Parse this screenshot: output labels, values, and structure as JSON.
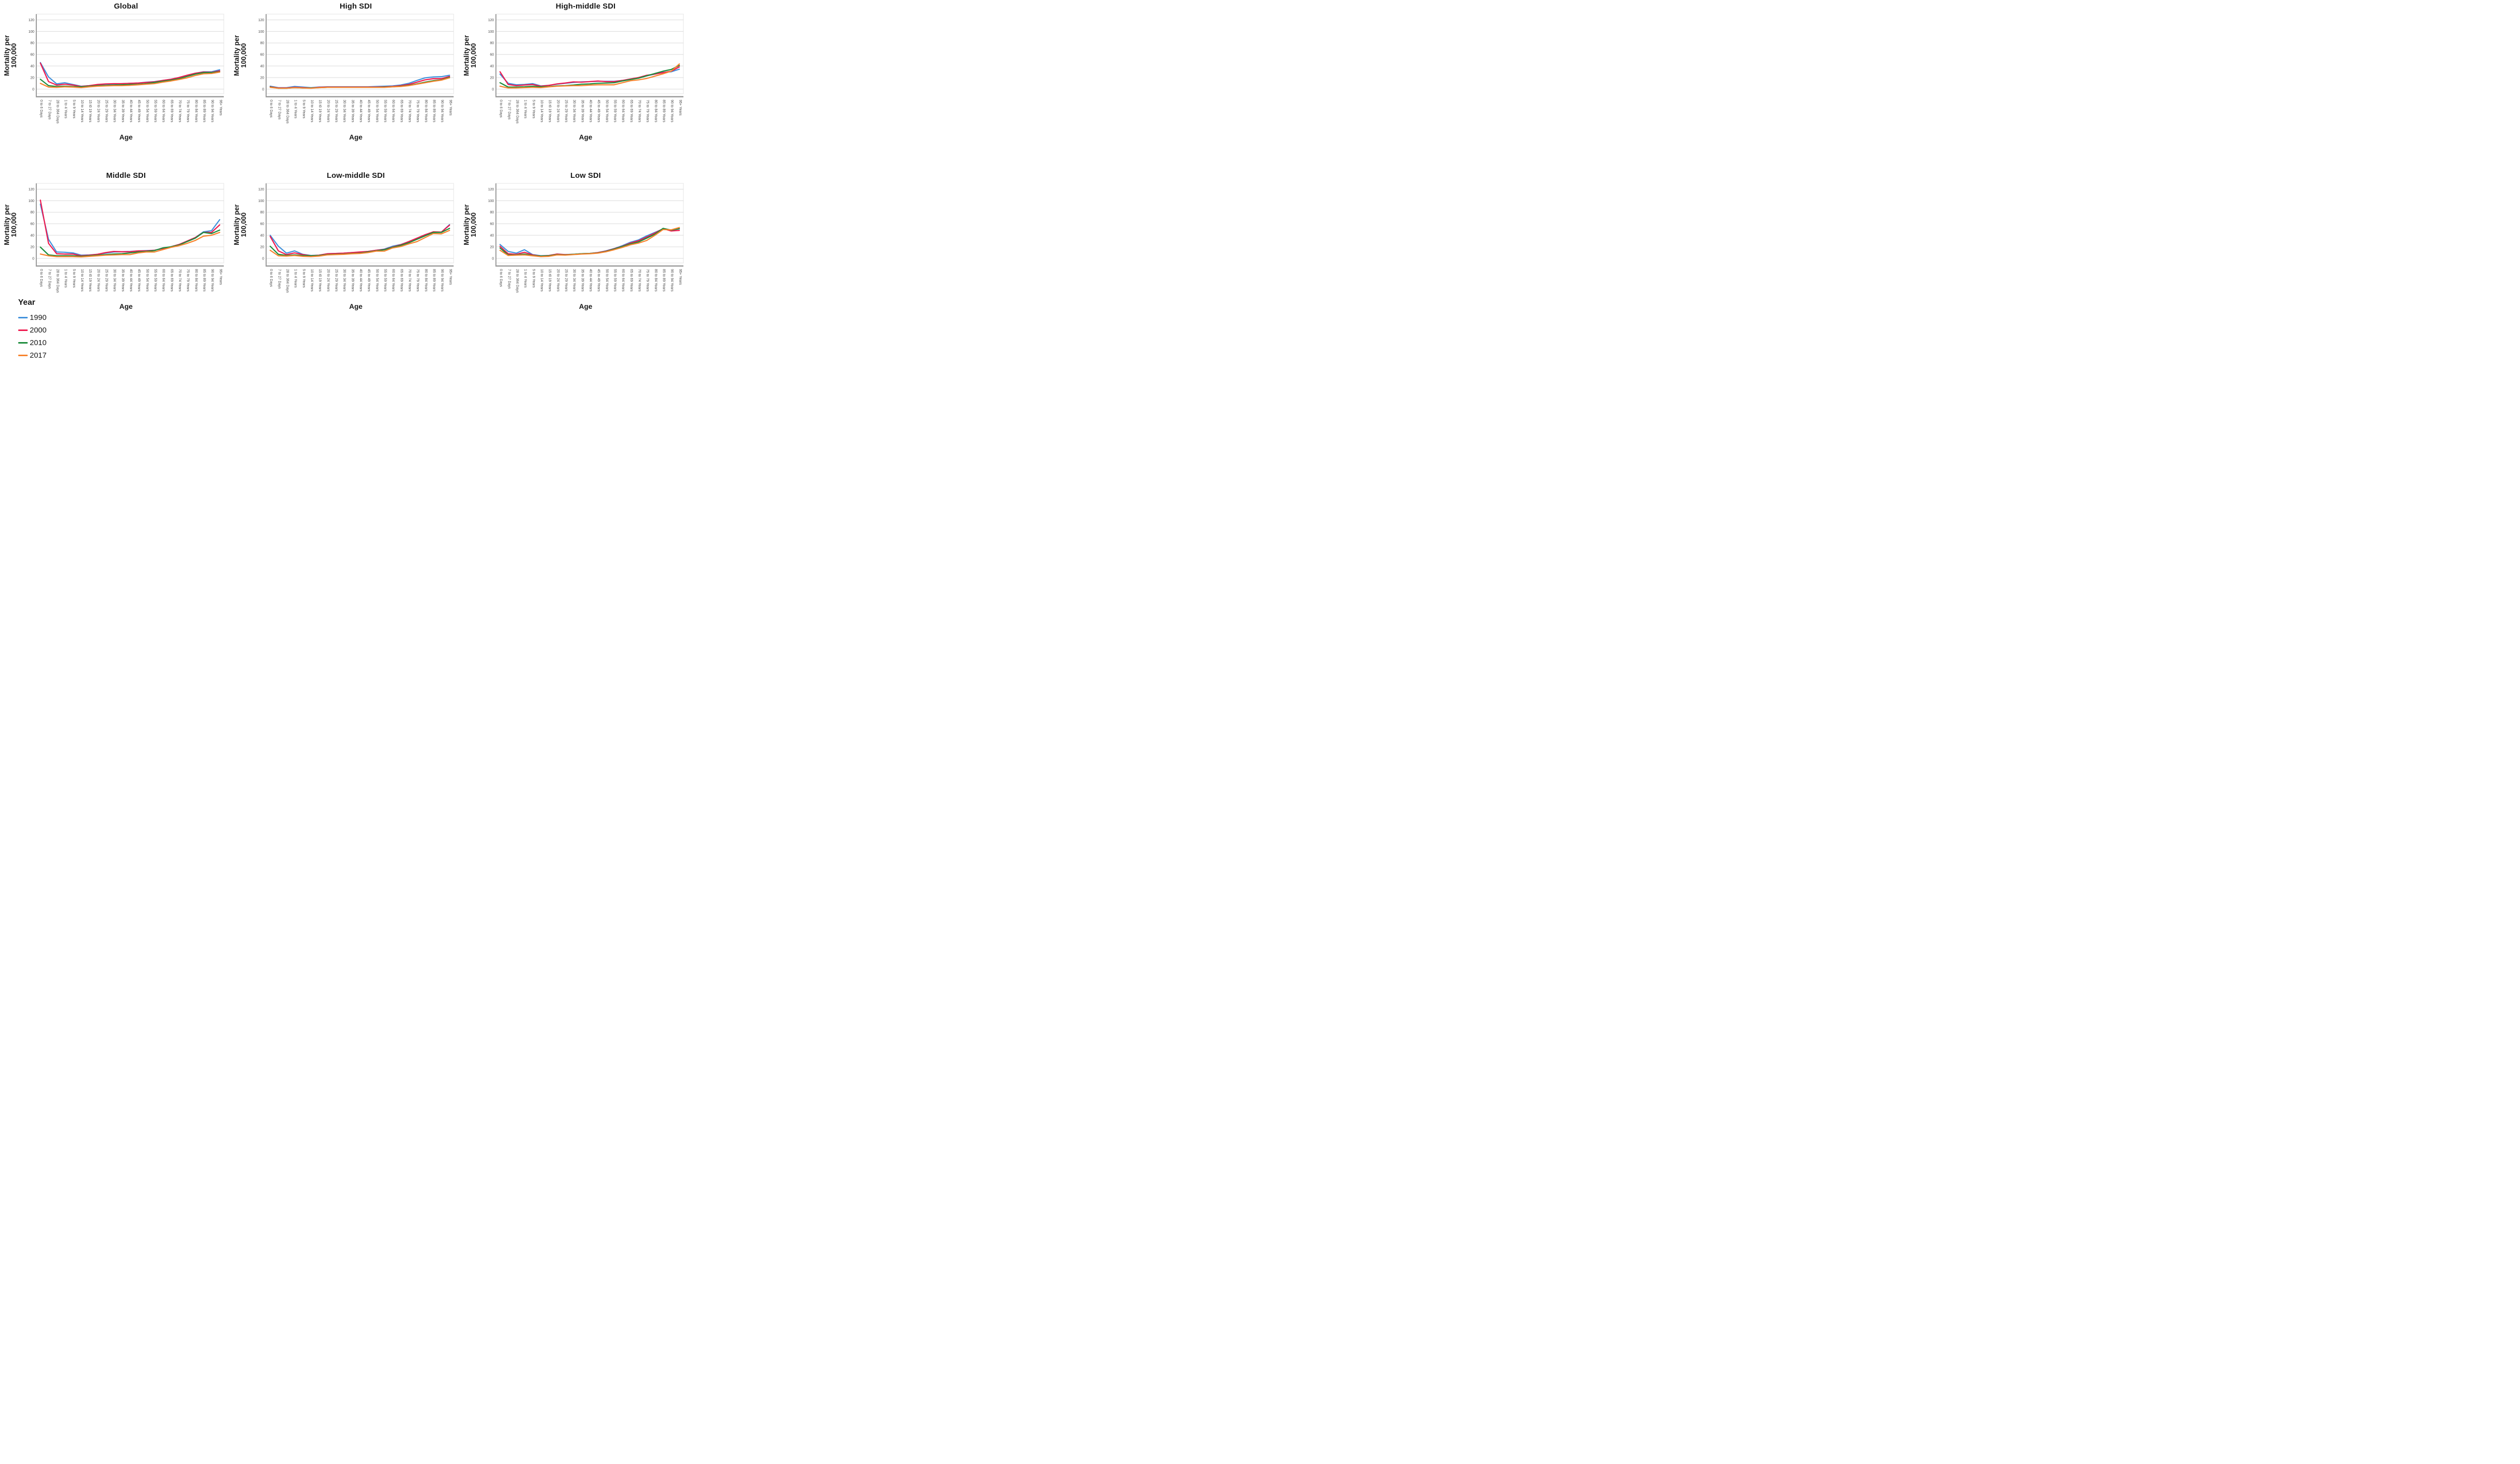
{
  "figure": {
    "background": "#ffffff",
    "gridline_color": "#d9d9d9",
    "axis_color": "#9a9a9a",
    "frame_color": "#e4e4e4",
    "tick_text_color": "#474747",
    "legend": {
      "title": "Year",
      "items": [
        {
          "label": "1990",
          "color": "#4191db"
        },
        {
          "label": "2000",
          "color": "#ef1a4f"
        },
        {
          "label": "2010",
          "color": "#1c8c3c"
        },
        {
          "label": "2017",
          "color": "#f7832d"
        }
      ]
    }
  },
  "chart_data": {
    "type": "line",
    "xlabel": "Age",
    "ylabel": "Mortality per 100,000",
    "ylabel_line1": "Mortality per",
    "ylabel_line2": "100,000",
    "ylim": [
      0,
      120
    ],
    "y_ticks": [
      0,
      20,
      40,
      60,
      80,
      100,
      120
    ],
    "grid": "horizontal",
    "legend_position": "bottom-left",
    "categories": [
      "0 to 6 Days",
      "7 to 27 Days",
      "28 to 364 Days",
      "1 to 4 Years",
      "5 to 9 Years",
      "10 to 14 Years",
      "15 t0 19 Years",
      "20 to 24 Years",
      "25 to 29 Years",
      "30 to 34 Years",
      "35 to 39 Years",
      "40 to 44 Years",
      "45 to 49 Years",
      "50 to 54 Years",
      "55 to 59 Years",
      "60 to 64 Years",
      "65 to 69 Years",
      "70 to 74 Years",
      "75 to 79 Years",
      "80 to 84 Years",
      "85 to 89 Years",
      "90 to 94 Years",
      "95+ Years"
    ],
    "series_colors": {
      "1990": "#4191db",
      "2000": "#ef1a4f",
      "2010": "#1c8c3c",
      "2017": "#f7832d"
    },
    "panels": [
      {
        "title": "Global",
        "series": [
          {
            "name": "1990",
            "values": [
              46,
              21,
              9,
              11,
              8,
              5,
              6,
              7.5,
              8.5,
              9,
              9.5,
              10,
              10.5,
              12,
              13,
              15,
              17,
              20,
              24,
              27.5,
              30,
              30,
              33.5
            ]
          },
          {
            "name": "2000",
            "values": [
              45,
              13,
              7,
              8.5,
              7,
              4.5,
              6,
              8,
              9,
              9.5,
              9.5,
              10,
              10.5,
              11.5,
              12.5,
              15,
              17,
              20,
              24,
              27.5,
              29.5,
              29,
              31.5
            ]
          },
          {
            "name": "2010",
            "values": [
              17,
              6,
              4.5,
              5,
              4.5,
              4,
              5,
              6,
              6.5,
              7,
              7.5,
              8,
              8.5,
              9.5,
              11.5,
              13.5,
              15.5,
              18,
              22,
              26,
              28.5,
              28.5,
              30
            ]
          },
          {
            "name": "2017",
            "values": [
              10,
              3.5,
              3,
              4,
              3.5,
              2.5,
              4,
              5,
              5.5,
              6,
              6,
              6.5,
              7.5,
              8.5,
              9.5,
              12,
              14,
              16.5,
              19.5,
              23.5,
              26.5,
              27,
              29.5
            ]
          }
        ]
      },
      {
        "title": "High SDI",
        "series": [
          {
            "name": "1990",
            "values": [
              5,
              2.5,
              2.5,
              4.5,
              3.5,
              2.5,
              3.5,
              4,
              4,
              4,
              4,
              4,
              4,
              4.5,
              5,
              5.5,
              7,
              10,
              15,
              19.5,
              21,
              21.5,
              24
            ]
          },
          {
            "name": "2000",
            "values": [
              4,
              2,
              2,
              3,
              2.5,
              2,
              3,
              3.5,
              3.5,
              3.5,
              3.5,
              3.5,
              3.5,
              3.5,
              4,
              4.5,
              6,
              8,
              12,
              16,
              18,
              18,
              22
            ]
          },
          {
            "name": "2010",
            "values": [
              3.5,
              1.5,
              1.5,
              2.5,
              2,
              2,
              2.5,
              3,
              3,
              3,
              3,
              3,
              3,
              3,
              3.5,
              4,
              5,
              6.5,
              9,
              12,
              14.5,
              16,
              20.5
            ]
          },
          {
            "name": "2017",
            "values": [
              3,
              1.5,
              1.5,
              2.5,
              2,
              1.5,
              2.5,
              3,
              3,
              3,
              3,
              3,
              3,
              3,
              3,
              4,
              4.5,
              6,
              8.5,
              11,
              13.5,
              15.5,
              19.5
            ]
          }
        ]
      },
      {
        "title": "High-middle SDI",
        "series": [
          {
            "name": "1990",
            "values": [
              26,
              10,
              7.5,
              8,
              9.5,
              5.5,
              6.5,
              8.5,
              10,
              11.5,
              12.5,
              13,
              13.5,
              13.5,
              13.5,
              15,
              17.5,
              19,
              23,
              26,
              29,
              30,
              34.5
            ]
          },
          {
            "name": "2000",
            "values": [
              30,
              8,
              6,
              7,
              8,
              5,
              6.5,
              9,
              10.5,
              12.5,
              12,
              13,
              14,
              13,
              13,
              15,
              17.5,
              20,
              24,
              26,
              28.5,
              31,
              38.5
            ]
          },
          {
            "name": "2010",
            "values": [
              11,
              3.5,
              3.5,
              4,
              5,
              4,
              4.5,
              5.5,
              6,
              7,
              8.5,
              9,
              10,
              10.5,
              11,
              14,
              16.5,
              19,
              23,
              27,
              31,
              34,
              41
            ]
          },
          {
            "name": "2017",
            "values": [
              5,
              2,
              2,
              2.5,
              3,
              2.5,
              4,
              5,
              5.5,
              6,
              6,
              7,
              7.5,
              7.5,
              7.5,
              11,
              14.5,
              16,
              18.5,
              22.5,
              26.5,
              31,
              43.5
            ]
          }
        ]
      },
      {
        "title": "Middle SDI",
        "series": [
          {
            "name": "1990",
            "values": [
              94,
              33,
              11,
              10.5,
              9.5,
              5.5,
              6,
              7,
              9,
              11,
              11.5,
              12,
              13,
              13.5,
              14,
              17,
              20,
              24,
              30,
              36,
              46,
              48,
              67
            ]
          },
          {
            "name": "2000",
            "values": [
              101,
              26,
              8,
              7.5,
              7.5,
              4.5,
              5.5,
              7,
              10,
              12,
              11.5,
              11.5,
              13,
              13,
              14,
              17,
              20,
              24,
              30,
              36,
              45,
              45,
              58
            ]
          },
          {
            "name": "2010",
            "values": [
              19.5,
              6,
              4.5,
              4.5,
              4.5,
              3.5,
              4.5,
              5.5,
              6.5,
              7.5,
              8,
              9.5,
              11,
              12,
              13.5,
              18,
              20,
              23,
              29,
              35,
              45,
              43,
              49
            ]
          },
          {
            "name": "2017",
            "values": [
              7.5,
              4.5,
              3,
              3,
              3,
              2.5,
              3.5,
              4.5,
              5.5,
              6,
              6.5,
              6.5,
              9.5,
              11,
              11,
              15,
              19,
              22,
              26,
              31,
              38.5,
              40,
              45
            ]
          }
        ]
      },
      {
        "title": "Low-middle SDI",
        "series": [
          {
            "name": "1990",
            "values": [
              40,
              21,
              9,
              13,
              7,
              5,
              5.5,
              8,
              8.5,
              9,
              10,
              10.5,
              12,
              14,
              16,
              21,
              24,
              29,
              35,
              41,
              45.5,
              45.5,
              58.5
            ]
          },
          {
            "name": "2000",
            "values": [
              38,
              13,
              6.5,
              9.5,
              6.5,
              4.5,
              5.5,
              8,
              8.5,
              9,
              10,
              11,
              12,
              14,
              15.5,
              19.5,
              23.5,
              29,
              35,
              41,
              46,
              45.5,
              57.5
            ]
          },
          {
            "name": "2010",
            "values": [
              21,
              7,
              5,
              6,
              5,
              4.5,
              5,
              6.5,
              7,
              7.5,
              8.5,
              9,
              11,
              13,
              15,
              19,
              22.5,
              27,
              33,
              39,
              45,
              45,
              52
            ]
          },
          {
            "name": "2017",
            "values": [
              14,
              4.5,
              4,
              5,
              3.5,
              3,
              4,
              6,
              6.5,
              7,
              8,
              8.5,
              10,
              12.5,
              12.5,
              18,
              20.5,
              25,
              29,
              36,
              43,
              42.5,
              48.5
            ]
          }
        ]
      },
      {
        "title": "Low SDI",
        "series": [
          {
            "name": "1990",
            "values": [
              24,
              12,
              9,
              15,
              6.5,
              4.5,
              5,
              7,
              6.5,
              7,
              8,
              8.5,
              10,
              13,
              17,
              22,
              28,
              32,
              39,
              45,
              51,
              49,
              51
            ]
          },
          {
            "name": "2000",
            "values": [
              21,
              8,
              7,
              10.5,
              6,
              4,
              5,
              7.5,
              6.5,
              7,
              8,
              8.5,
              10,
              12.5,
              16.5,
              21,
              26.5,
              30.5,
              37,
              44,
              51.5,
              47.5,
              48.5
            ]
          },
          {
            "name": "2010",
            "values": [
              18,
              6,
              6,
              7.5,
              5,
              4,
              4.5,
              6.5,
              6,
              7,
              8,
              8.5,
              9.5,
              12,
              16,
              20.5,
              25,
              28.5,
              35,
              42,
              52,
              49,
              51.5
            ]
          },
          {
            "name": "2017",
            "values": [
              14,
              5,
              5.5,
              6,
              4.5,
              3,
              3.5,
              6,
              5.5,
              6.5,
              7.5,
              8,
              9,
              11.5,
              15,
              19,
              23.5,
              26.5,
              31,
              40,
              50,
              49.5,
              53.5
            ]
          }
        ]
      }
    ]
  }
}
